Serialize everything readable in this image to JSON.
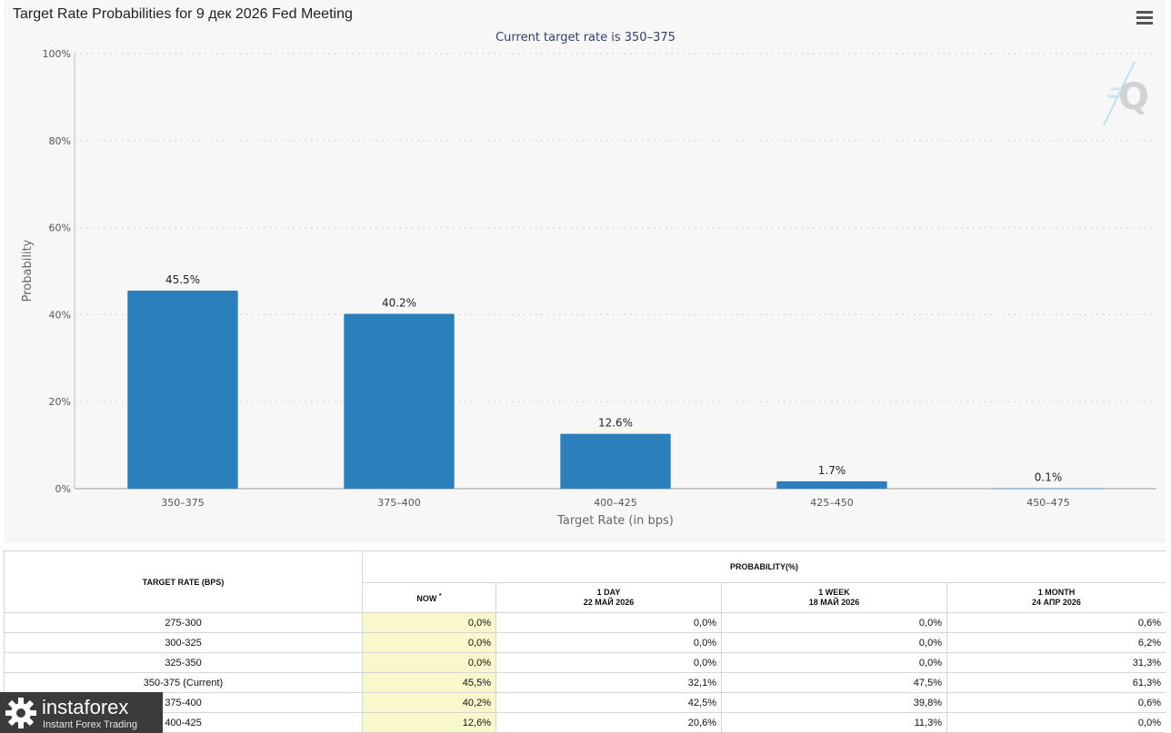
{
  "chart_title": "Target Rate Probabilities for 9 дек 2026 Fed Meeting",
  "chart_data": {
    "type": "bar",
    "title": "Target Rate Probabilities for 9 дек 2026 Fed Meeting",
    "subtitle": "Current target rate is 350–375",
    "xlabel": "Target Rate (in bps)",
    "ylabel": "Probability",
    "categories": [
      "350–375",
      "375–400",
      "400–425",
      "425–450",
      "450–475"
    ],
    "values": [
      45.5,
      40.2,
      12.6,
      1.7,
      0.1
    ],
    "data_labels": [
      "45.5%",
      "40.2%",
      "12.6%",
      "1.7%",
      "0.1%"
    ],
    "ylim": [
      0,
      100
    ],
    "yticks": [
      0,
      20,
      40,
      60,
      80,
      100
    ],
    "ytick_labels": [
      "0%",
      "20%",
      "40%",
      "60%",
      "80%",
      "100%"
    ],
    "grid": true,
    "bar_color": "#2b7fba"
  },
  "table": {
    "col_rate_header": "TARGET RATE (BPS)",
    "prob_header": "PROBABILITY(%)",
    "now_label": "NOW",
    "now_mark": "*",
    "sub_headers": [
      {
        "line1": "1 DAY",
        "line2": "22 МАЙ 2026"
      },
      {
        "line1": "1 WEEK",
        "line2": "18 МАЙ 2026"
      },
      {
        "line1": "1 MONTH",
        "line2": "24 АПР 2026"
      }
    ],
    "rows": [
      {
        "rate": "275-300",
        "now": "0,0%",
        "day": "0,0%",
        "week": "0,0%",
        "month": "0,6%"
      },
      {
        "rate": "300-325",
        "now": "0,0%",
        "day": "0,0%",
        "week": "0,0%",
        "month": "6,2%"
      },
      {
        "rate": "325-350",
        "now": "0,0%",
        "day": "0,0%",
        "week": "0,0%",
        "month": "31,3%"
      },
      {
        "rate": "350-375 (Current)",
        "now": "45,5%",
        "day": "32,1%",
        "week": "47,5%",
        "month": "61,3%"
      },
      {
        "rate": "375-400",
        "now": "40,2%",
        "day": "42,5%",
        "week": "39,8%",
        "month": "0,6%"
      },
      {
        "rate": "400-425",
        "now": "12,6%",
        "day": "20,6%",
        "week": "11,3%",
        "month": "0,0%"
      }
    ],
    "now_highlight_color": "#f8f8cc"
  },
  "watermark": {
    "brand": "instaforex",
    "tagline": "Instant Forex Trading"
  }
}
